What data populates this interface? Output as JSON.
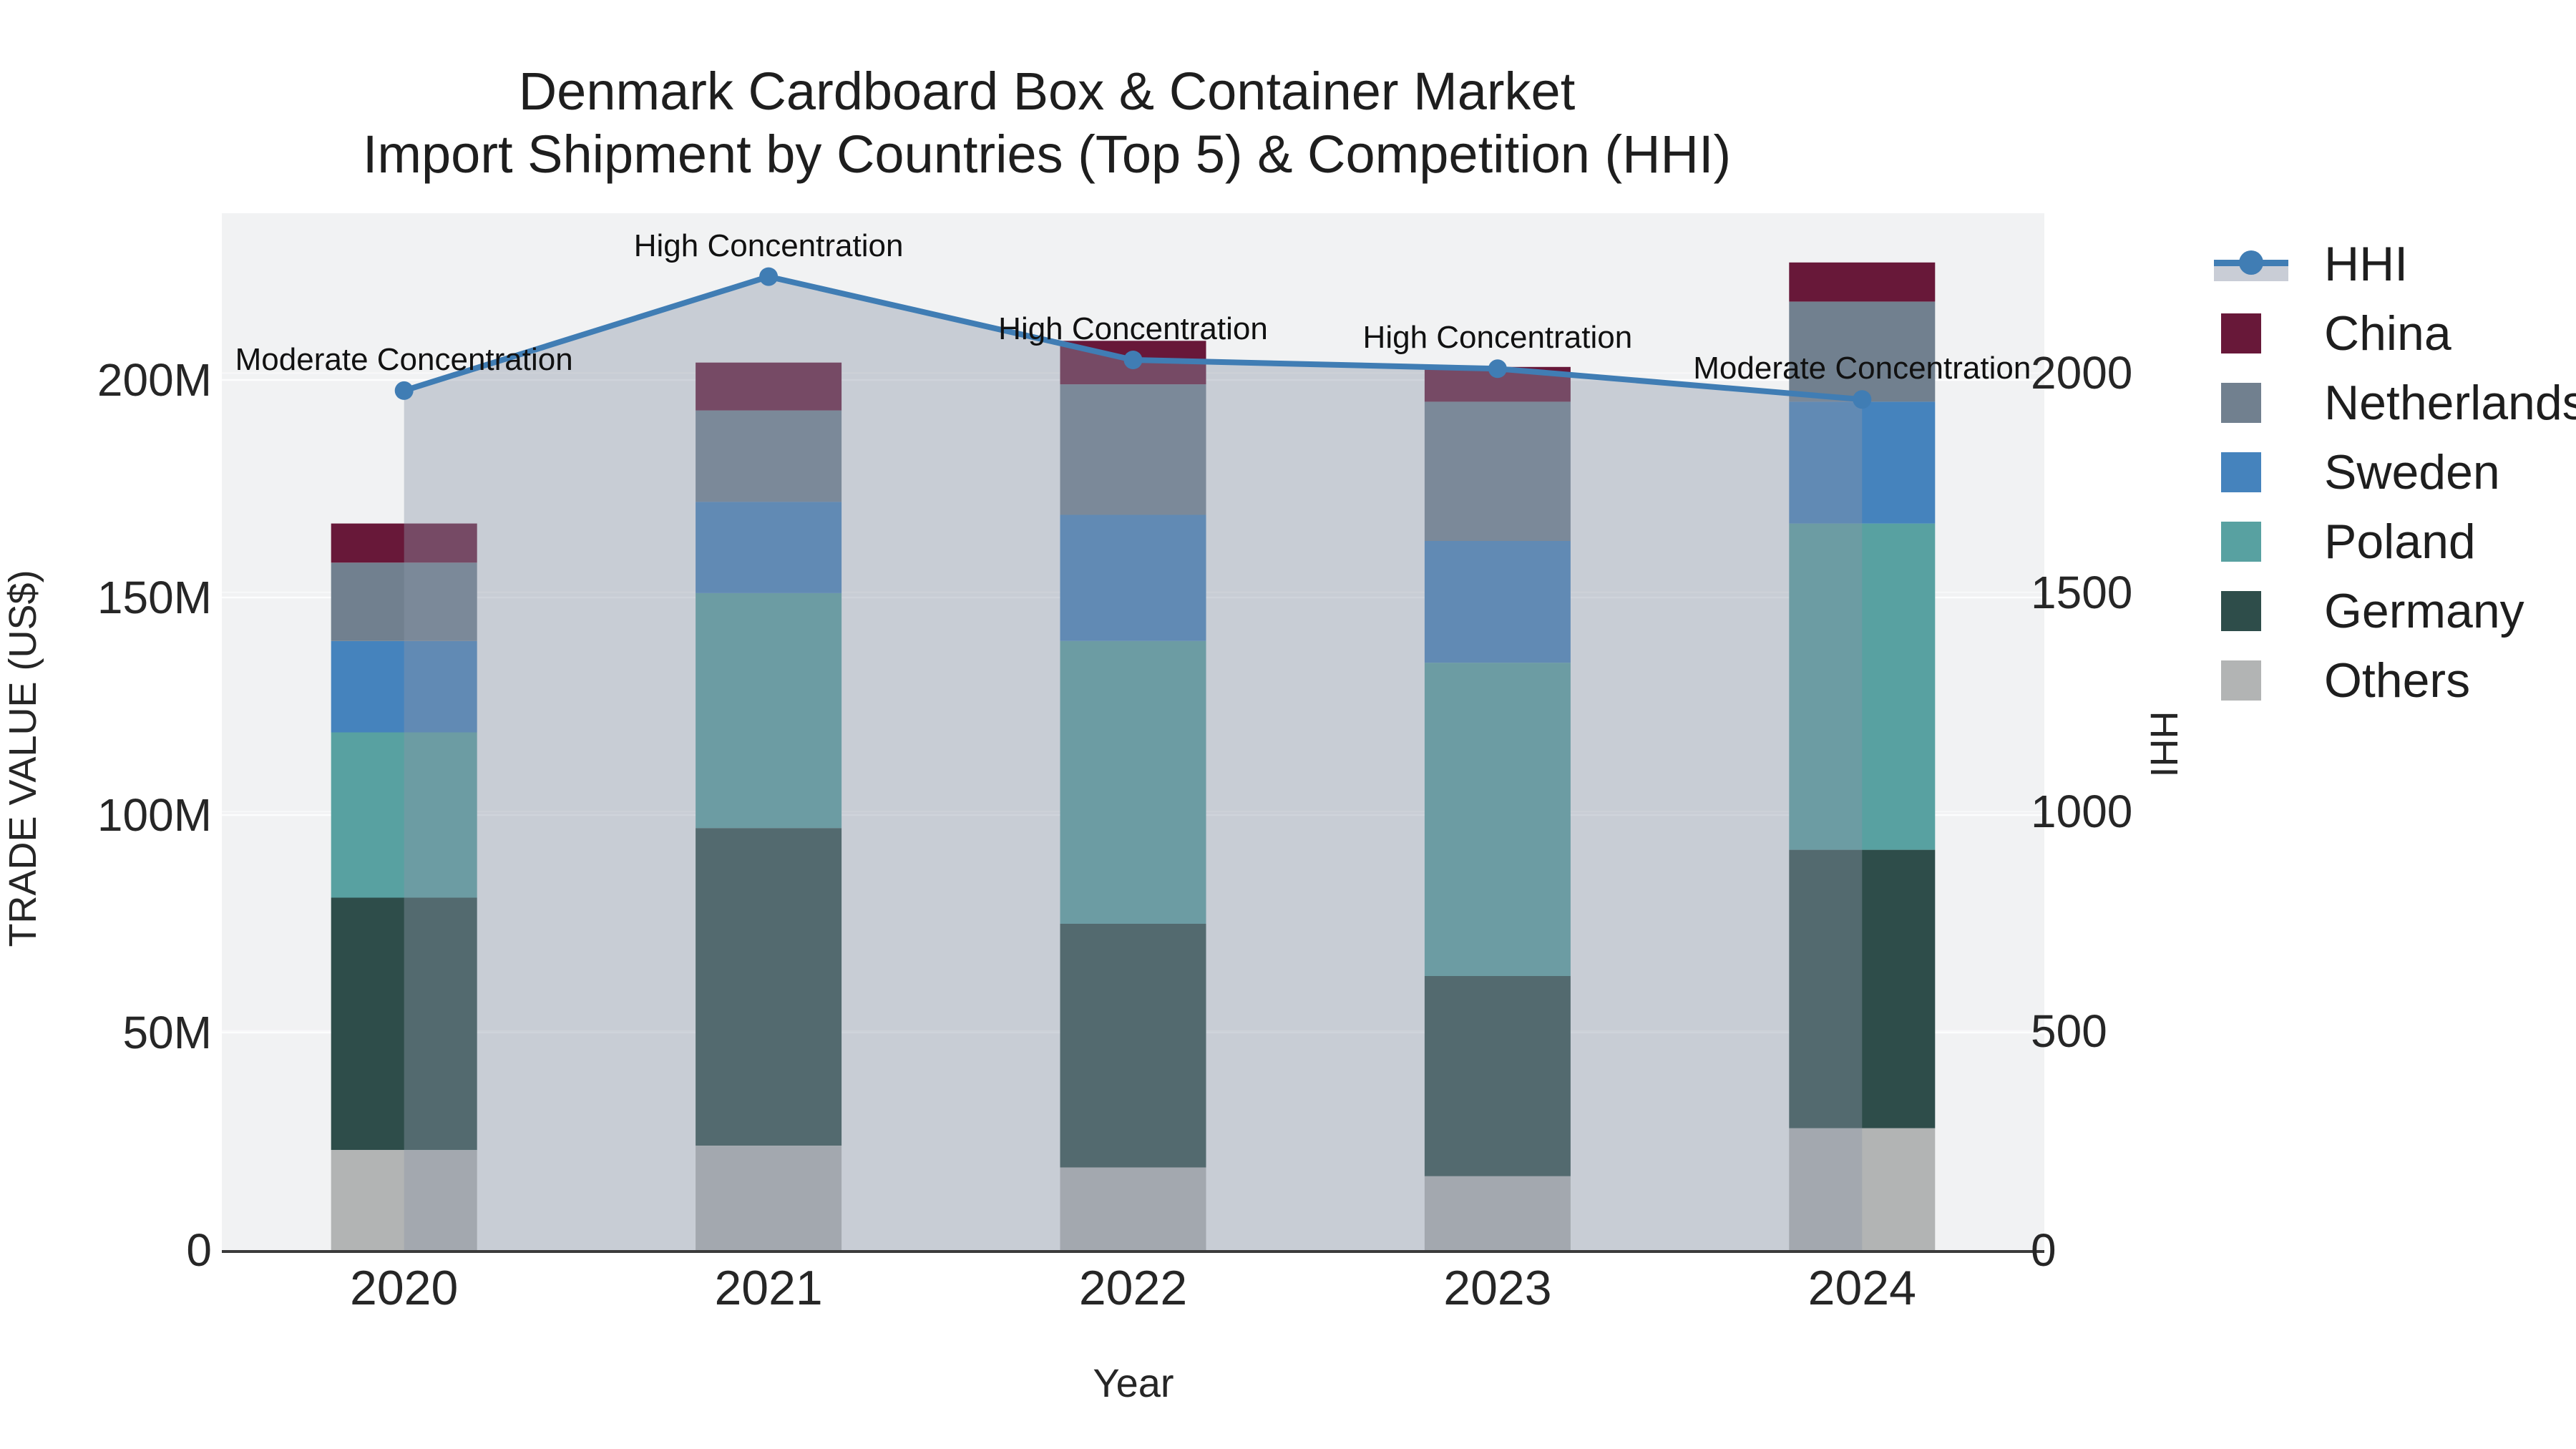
{
  "title": {
    "line1": "Denmark Cardboard Box & Container Market",
    "line2": "Import Shipment by Countries (Top 5) & Competition (HHI)"
  },
  "chart_data": {
    "type": "bar+line",
    "x": [
      "2020",
      "2021",
      "2022",
      "2023",
      "2024"
    ],
    "bar_value_unit": "million US$",
    "series": [
      {
        "name": "China",
        "color": "#681839",
        "values": [
          9,
          11,
          10,
          8,
          9
        ]
      },
      {
        "name": "Netherlands",
        "color": "#71808f",
        "values": [
          18,
          21,
          30,
          32,
          23
        ]
      },
      {
        "name": "Sweden",
        "color": "#4583bd",
        "values": [
          21,
          21,
          29,
          28,
          28
        ]
      },
      {
        "name": "Poland",
        "color": "#58a1a1",
        "values": [
          38,
          54,
          65,
          72,
          75
        ]
      },
      {
        "name": "Germany",
        "color": "#2e4d4a",
        "values": [
          58,
          73,
          56,
          46,
          64
        ]
      },
      {
        "name": "Others",
        "color": "#b2b4b4",
        "values": [
          23,
          24,
          19,
          17,
          28
        ]
      }
    ],
    "stack_order_bottom_to_top": [
      "Others",
      "Germany",
      "Poland",
      "Sweden",
      "Netherlands",
      "China"
    ],
    "totals": [
      167,
      204,
      209,
      203,
      227
    ],
    "line": {
      "name": "HHI",
      "color": "#407db4",
      "area_color": "rgba(140,150,168,0.40)",
      "values": [
        1960,
        2220,
        2030,
        2010,
        1940
      ]
    },
    "annotations": [
      {
        "x_index": 0,
        "label": "Moderate Concentration"
      },
      {
        "x_index": 1,
        "label": "High Concentration"
      },
      {
        "x_index": 2,
        "label": "High Concentration"
      },
      {
        "x_index": 3,
        "label": "High Concentration"
      },
      {
        "x_index": 4,
        "label": "Moderate Concentration"
      }
    ],
    "y_left": {
      "title": "TRADE VALUE (US$)",
      "tick_labels": [
        "0",
        "50M",
        "100M",
        "150M",
        "200M"
      ],
      "tick_values": [
        0,
        50,
        100,
        150,
        200
      ],
      "range": [
        0,
        238
      ]
    },
    "y_right": {
      "title": "HHI",
      "tick_labels": [
        "0",
        "500",
        "1000",
        "1500",
        "2000"
      ],
      "tick_values": [
        0,
        500,
        1000,
        1500,
        2000
      ],
      "range": [
        0,
        2365
      ]
    },
    "x_axis": {
      "title": "Year"
    },
    "grid": true,
    "legend_position": "right",
    "plot_bg": "#f1f2f3"
  }
}
